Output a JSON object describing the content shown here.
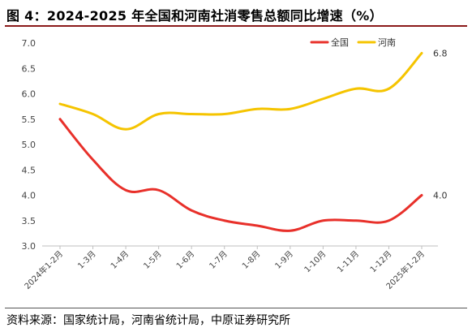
{
  "figure": {
    "title": "图 4：2024-2025 年全国和河南社消零售总额同比增速（%）",
    "source": "资料来源：国家统计局，河南省统计局，中原证券研究所"
  },
  "chart_data": {
    "type": "line",
    "categories": [
      "2024年1-2月",
      "1-3月",
      "1-4月",
      "1-5月",
      "1-6月",
      "1-7月",
      "1-8月",
      "1-9月",
      "1-10月",
      "1-11月",
      "1-12月",
      "2025年1-2月"
    ],
    "series": [
      {
        "name": "全国",
        "color": "#e8302a",
        "values": [
          5.5,
          4.7,
          4.1,
          4.1,
          3.7,
          3.5,
          3.4,
          3.3,
          3.5,
          3.5,
          3.5,
          4.0
        ]
      },
      {
        "name": "河南",
        "color": "#f5c400",
        "values": [
          5.8,
          5.6,
          5.3,
          5.6,
          5.6,
          5.6,
          5.7,
          5.7,
          5.9,
          6.1,
          6.1,
          6.8
        ]
      }
    ],
    "data_labels": {
      "全国_last": "4.0",
      "河南_last": "6.8"
    },
    "y_ticks": [
      "3.0",
      "3.5",
      "4.0",
      "4.5",
      "5.0",
      "5.5",
      "6.0",
      "6.5",
      "7.0"
    ],
    "ylim": [
      3.0,
      7.0
    ],
    "grid": false,
    "legend_position": "top-right"
  }
}
